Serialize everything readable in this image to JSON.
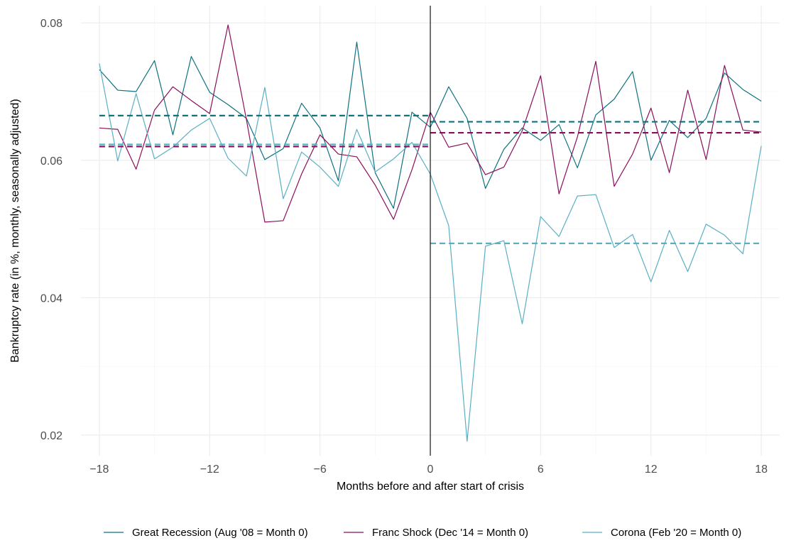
{
  "chart_data": {
    "type": "line",
    "xlabel": "Months before and after start of crisis",
    "ylabel": "Bankruptcy rate (in %, monthly, seasonally adjusted)",
    "xlim": [
      -19,
      19
    ],
    "ylim": [
      0.017,
      0.0825
    ],
    "x_ticks": [
      -18,
      -12,
      -6,
      0,
      6,
      12,
      18
    ],
    "x_tick_labels": [
      "−18",
      "−12",
      "−6",
      "0",
      "6",
      "12",
      "18"
    ],
    "y_ticks": [
      0.02,
      0.04,
      0.06,
      0.08
    ],
    "y_tick_labels": [
      "0.02",
      "0.04",
      "0.06",
      "0.08"
    ],
    "grid": true,
    "vline_x": 0,
    "legend_position": "bottom",
    "x": [
      -18,
      -17,
      -16,
      -15,
      -14,
      -13,
      -12,
      -11,
      -10,
      -9,
      -8,
      -7,
      -6,
      -5,
      -4,
      -3,
      -2,
      -1,
      0,
      1,
      2,
      3,
      4,
      5,
      6,
      7,
      8,
      9,
      10,
      11,
      12,
      13,
      14,
      15,
      16,
      17,
      18
    ],
    "series": [
      {
        "name": "Great Recession (Aug '08 = Month 0)",
        "color": "#0e7280",
        "values": [
          0.0732,
          0.0702,
          0.07,
          0.0745,
          0.0637,
          0.0751,
          0.0699,
          0.0681,
          0.0661,
          0.0601,
          0.0617,
          0.0683,
          0.0647,
          0.057,
          0.0772,
          0.0582,
          0.053,
          0.067,
          0.0648,
          0.0707,
          0.0661,
          0.0559,
          0.0616,
          0.0647,
          0.0629,
          0.0652,
          0.0589,
          0.0666,
          0.0689,
          0.0729,
          0.06,
          0.0658,
          0.0633,
          0.0661,
          0.0727,
          0.0703,
          0.0686
        ],
        "pre_mean": 0.0665,
        "post_mean": 0.0656
      },
      {
        "name": "Franc Shock (Dec '14 = Month 0)",
        "color": "#8b0e5c",
        "values": [
          0.0647,
          0.0645,
          0.0587,
          0.0673,
          0.0707,
          0.0687,
          0.0668,
          0.0797,
          0.0659,
          0.051,
          0.0512,
          0.058,
          0.0637,
          0.0609,
          0.0605,
          0.0564,
          0.0514,
          0.0586,
          0.067,
          0.0619,
          0.0625,
          0.0579,
          0.059,
          0.0643,
          0.0723,
          0.0551,
          0.0634,
          0.0744,
          0.0562,
          0.0609,
          0.0676,
          0.0582,
          0.0702,
          0.0601,
          0.0738,
          0.0644,
          0.0641
        ],
        "pre_mean": 0.062,
        "post_mean": 0.064
      },
      {
        "name": "Corona (Feb '20 = Month 0)",
        "color": "#5aafc4",
        "values": [
          0.0741,
          0.0599,
          0.0697,
          0.0602,
          0.0619,
          0.0644,
          0.0661,
          0.0603,
          0.0577,
          0.0706,
          0.0544,
          0.0612,
          0.059,
          0.0562,
          0.0645,
          0.0583,
          0.0602,
          0.0626,
          0.058,
          0.0505,
          0.0191,
          0.0475,
          0.0483,
          0.0362,
          0.0518,
          0.0489,
          0.0548,
          0.055,
          0.0473,
          0.0492,
          0.0423,
          0.0498,
          0.0438,
          0.0507,
          0.0491,
          0.0464,
          0.0621
        ],
        "pre_mean": 0.0623,
        "post_mean": 0.0479
      }
    ]
  }
}
